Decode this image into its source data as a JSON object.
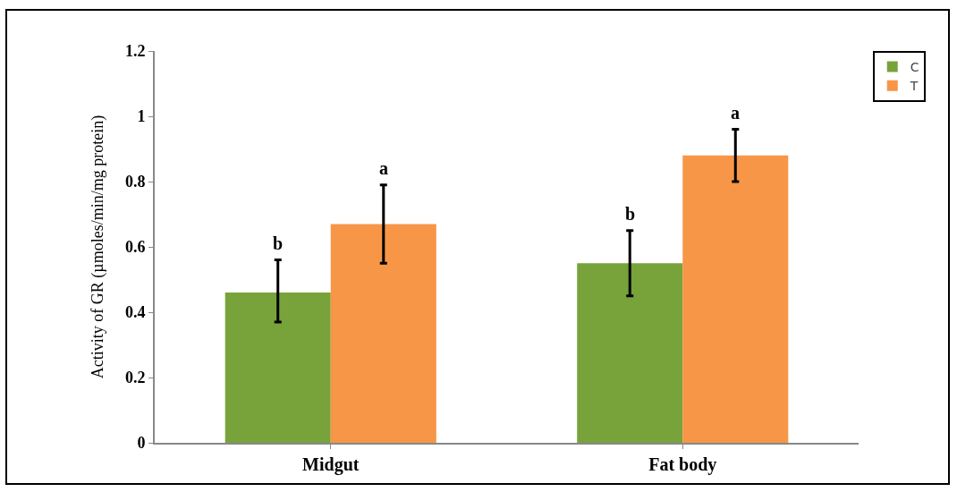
{
  "chart_data": {
    "type": "bar",
    "ylabel": "Activity of GR (µmoles/min/mg protein)",
    "categories": [
      "Midgut",
      "Fat body"
    ],
    "series": [
      {
        "name": "C",
        "color": "#77a33a",
        "values": [
          0.46,
          0.55
        ],
        "errors": [
          [
            0.37,
            0.56
          ],
          [
            0.45,
            0.65
          ]
        ]
      },
      {
        "name": "T",
        "color": "#f79646",
        "values": [
          0.67,
          0.88
        ],
        "errors": [
          [
            0.55,
            0.79
          ],
          [
            0.8,
            0.96
          ]
        ]
      }
    ],
    "annotations": [
      "b",
      "a",
      "b",
      "a"
    ],
    "ylim": [
      0,
      1.2
    ],
    "yticks": [
      0,
      0.2,
      0.4,
      0.6,
      0.8,
      1,
      1.2
    ],
    "grid": false,
    "legend": "top right"
  }
}
